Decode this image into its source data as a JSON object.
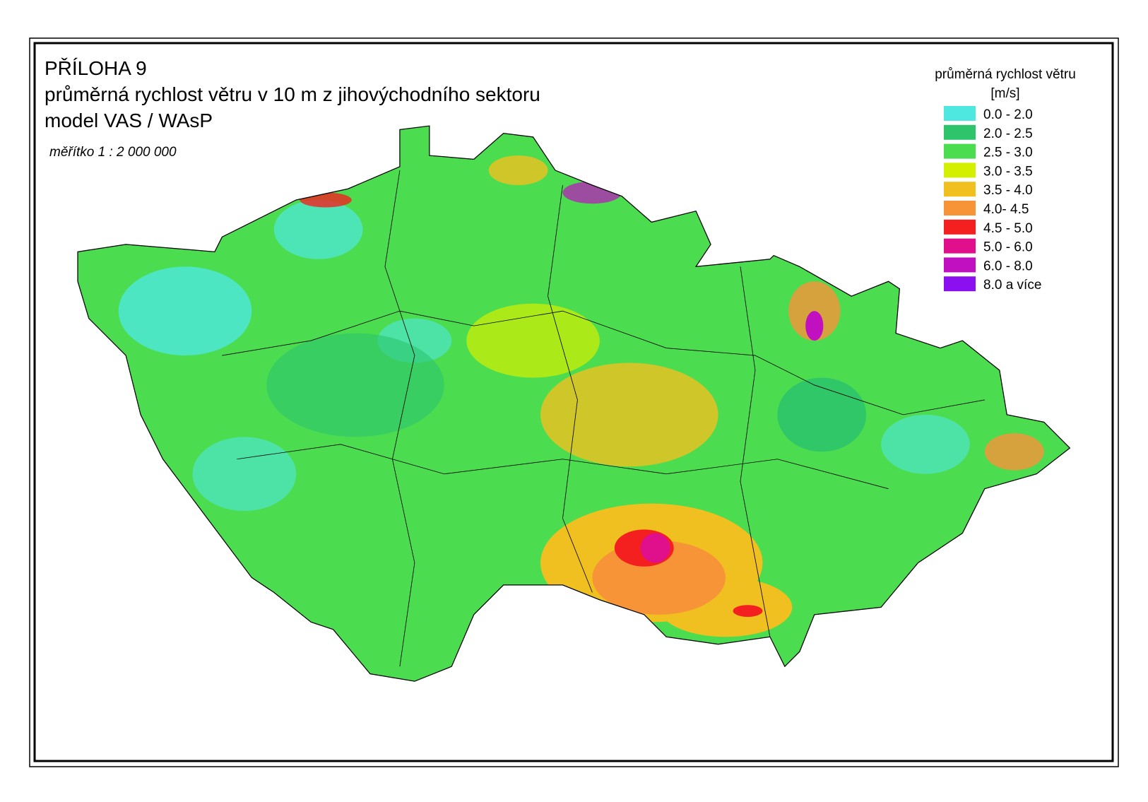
{
  "header": {
    "title": "PŘÍLOHA 9",
    "subtitle": "průměrná rychlost větru v 10 m z   jihovýchodního sektoru",
    "model": "model VAS / WAsP",
    "scale": "měřítko 1 : 2 000 000"
  },
  "legend": {
    "title": "průměrná rychlost větru",
    "unit": "[m/s]",
    "items": [
      {
        "label": "0.0 - 2.0",
        "color": "#4ee8e0"
      },
      {
        "label": "2.0 - 2.5",
        "color": "#2dc46c"
      },
      {
        "label": "2.5 - 3.0",
        "color": "#4cdc50"
      },
      {
        "label": "3.0 - 3.5",
        "color": "#d4f000"
      },
      {
        "label": "3.5 - 4.0",
        "color": "#f0c020"
      },
      {
        "label": "4.0- 4.5",
        "color": "#f89438"
      },
      {
        "label": "4.5 - 5.0",
        "color": "#f42020"
      },
      {
        "label": "5.0 - 6.0",
        "color": "#e0108c"
      },
      {
        "label": "6.0 - 8.0",
        "color": "#c010c0"
      },
      {
        "label": "8.0 a více",
        "color": "#8a10f0"
      }
    ]
  }
}
